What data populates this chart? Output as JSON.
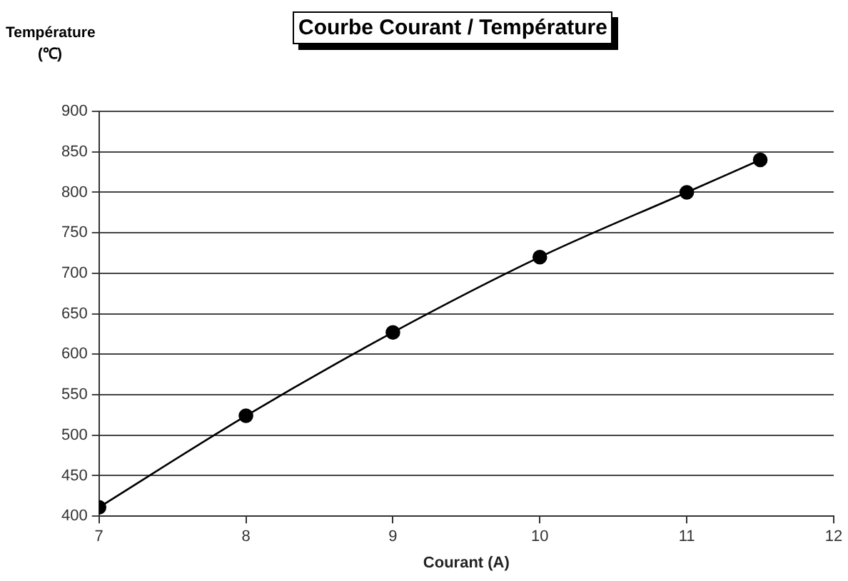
{
  "chart_data": {
    "type": "line",
    "title": "Courbe Courant / Température",
    "xlabel": "Courant (A)",
    "ylabel": "Température\n(℃)",
    "x": [
      7,
      8,
      9,
      10,
      11,
      11.5
    ],
    "series": [
      {
        "color": "#000000",
        "values": [
          411,
          524,
          627,
          720,
          800,
          840
        ]
      }
    ],
    "xlim": [
      7,
      12
    ],
    "xticks": [
      7,
      8,
      9,
      10,
      11,
      12
    ],
    "ylim": [
      400,
      900
    ],
    "yticks": [
      400,
      450,
      500,
      550,
      600,
      650,
      700,
      750,
      800,
      850,
      900
    ],
    "grid": "y",
    "legend": false,
    "marker": "circle",
    "line_style": "solid"
  }
}
